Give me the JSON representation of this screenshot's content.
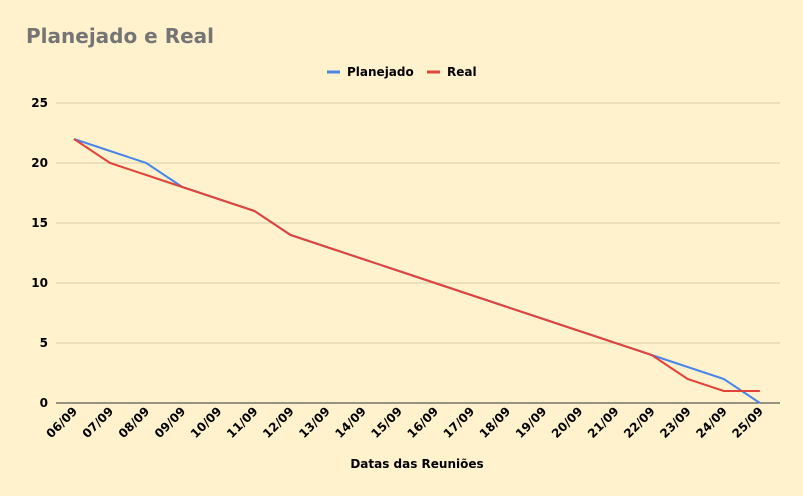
{
  "chart_data": {
    "type": "line",
    "title": "Planejado e Real",
    "xlabel": "Datas das Reuniões",
    "ylabel": "",
    "ylim": [
      0,
      25
    ],
    "yticks": [
      "0",
      "5",
      "10",
      "15",
      "20",
      "25"
    ],
    "grid": true,
    "legend_position": "top",
    "categories": [
      "06/09",
      "07/09",
      "08/09",
      "09/09",
      "10/09",
      "11/09",
      "12/09",
      "13/09",
      "14/09",
      "15/09",
      "16/09",
      "17/09",
      "18/09",
      "19/09",
      "20/09",
      "21/09",
      "22/09",
      "23/09",
      "24/09",
      "25/09"
    ],
    "series": [
      {
        "name": "Planejado",
        "color": "#4a86e8",
        "values": [
          22,
          21,
          20,
          18,
          17,
          16,
          14,
          13,
          12,
          11,
          10,
          9,
          8,
          7,
          6,
          5,
          4,
          3,
          2,
          0
        ]
      },
      {
        "name": "Real",
        "color": "#e0443a",
        "values": [
          22,
          20,
          19,
          18,
          17,
          16,
          14,
          13,
          12,
          11,
          10,
          9,
          8,
          7,
          6,
          5,
          4,
          2,
          1,
          1
        ]
      }
    ]
  },
  "colors": {
    "background": "#fff2cc",
    "gridline": "#d9ccaa",
    "title": "#757575"
  }
}
